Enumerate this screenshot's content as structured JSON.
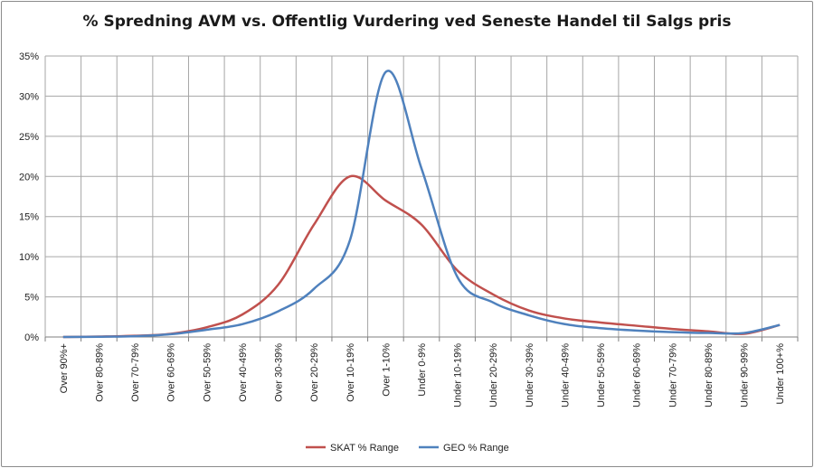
{
  "chart_data": {
    "type": "line",
    "title": "% Spredning AVM vs. Offentlig Vurdering ved Seneste Handel til Salgs pris",
    "xlabel": "",
    "ylabel": "",
    "categories": [
      "Over 90%+",
      "Over 80-89%",
      "Over 70-79%",
      "Over 60-69%",
      "Over 50-59%",
      "Over 40-49%",
      "Over 30-39%",
      "Over 20-29%",
      "Over 10-19%",
      "Over 1-10%",
      "Under 0-9%",
      "Under 10-19%",
      "Under 20-29%",
      "Under 30-39%",
      "Under 40-49%",
      "Under 50-59%",
      "Under 60-69%",
      "Under 70-79%",
      "Under 80-89%",
      "Under 90-99%",
      "Under 100+%"
    ],
    "yticks": [
      "0%",
      "5%",
      "10%",
      "15%",
      "20%",
      "25%",
      "30%",
      "35%"
    ],
    "ylim": [
      0,
      35
    ],
    "grid": true,
    "legend_position": "bottom",
    "series": [
      {
        "name": "SKAT % Range",
        "color": "#c0504d",
        "values": [
          0.0,
          0.05,
          0.15,
          0.4,
          1.2,
          2.8,
          6.5,
          14.0,
          20.0,
          17.0,
          14.0,
          8.3,
          5.3,
          3.3,
          2.3,
          1.8,
          1.4,
          1.0,
          0.7,
          0.4,
          1.5
        ]
      },
      {
        "name": "GEO % Range",
        "color": "#4f81bd",
        "values": [
          0.0,
          0.03,
          0.1,
          0.35,
          0.9,
          1.6,
          3.2,
          6.0,
          12.0,
          33.0,
          21.0,
          7.5,
          4.3,
          2.7,
          1.6,
          1.1,
          0.8,
          0.6,
          0.5,
          0.5,
          1.5
        ]
      }
    ]
  }
}
